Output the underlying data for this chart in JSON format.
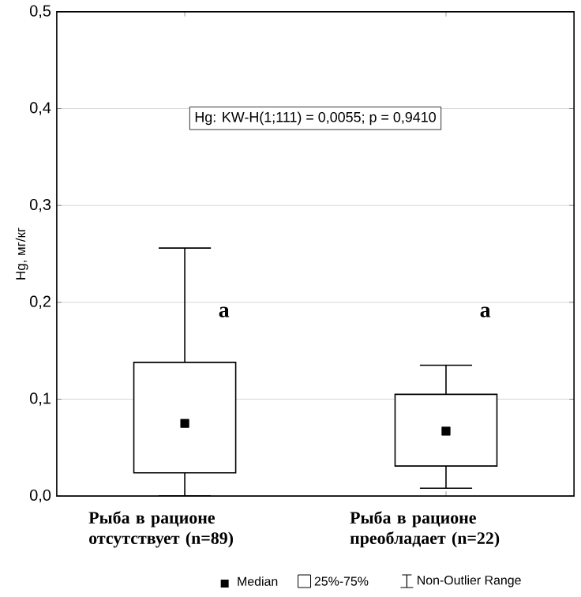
{
  "chart_data": {
    "type": "box",
    "ylabel": "Hg, мг/кг",
    "categories": [
      "Рыба в рационе отсутствует (n=89)",
      "Рыба в рационе преобладает (n=22)"
    ],
    "boxes": [
      {
        "low": 0.0,
        "q1": 0.024,
        "median": 0.075,
        "q3": 0.138,
        "high": 0.256
      },
      {
        "low": 0.008,
        "q1": 0.031,
        "median": 0.067,
        "q3": 0.105,
        "high": 0.135
      }
    ],
    "ylim": [
      0,
      0.5
    ],
    "yticks": [
      {
        "value": 0,
        "label": "0,0"
      },
      {
        "value": 0.1,
        "label": "0,1"
      },
      {
        "value": 0.2,
        "label": "0,2"
      },
      {
        "value": 0.3,
        "label": "0,3"
      },
      {
        "value": 0.4,
        "label": "0,4"
      },
      {
        "value": 0.5,
        "label": "0,5"
      }
    ],
    "grid": "y",
    "annotations": [
      "Hg:  KW-H(1;111) = 0,0055; p = 0,9410",
      "a",
      "a",
      "Median",
      "25%-75%",
      "Non-Outlier Range"
    ]
  }
}
